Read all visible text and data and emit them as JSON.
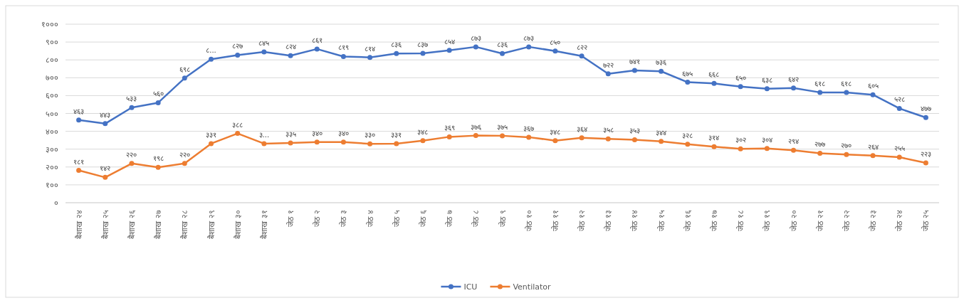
{
  "chart_data": {
    "type": "line",
    "categories": [
      "बैशाख २४",
      "बैशाख २५",
      "बैशाख २६",
      "बैशाख २७",
      "बैशाख २८",
      "बैशाख २९",
      "बैशाख ३०",
      "बैशाख ३१",
      "जेठ १",
      "जेठ २",
      "जेठ ३",
      "जेठ ४",
      "जेठ ५",
      "जेठ ६",
      "जेठ ७",
      "जेठ ८",
      "जेठ ९",
      "जेठ १०",
      "जेठ ११",
      "जेठ १२",
      "जेठ १३",
      "जेठ १४",
      "जेठ १५",
      "जेठ १६",
      "जेठ १७",
      "जेठ १८",
      "जेठ १९",
      "जेठ २०",
      "जेठ २१",
      "जेठ २२",
      "जेठ २३",
      "जेठ २४",
      "जेठ २५"
    ],
    "series": [
      {
        "name": "ICU",
        "color": "#4472c4",
        "values": [
          463,
          443,
          533,
          560,
          698,
          804,
          827,
          845,
          824,
          861,
          819,
          814,
          836,
          837,
          854,
          873,
          836,
          873,
          850,
          822,
          722,
          741,
          736,
          675,
          668,
          650,
          638,
          642,
          618,
          618,
          605,
          528,
          477
        ],
        "value_labels": [
          "४६३",
          "४४३",
          "५३३",
          "५६०",
          "६९८",
          "८...",
          "८२७",
          "८४५",
          "८२४",
          "८६१",
          "८१९",
          "८१४",
          "८३६",
          "८३७",
          "८५४",
          "८७३",
          "८३६",
          "८७३",
          "८५०",
          "८२२",
          "७२२",
          "७४१",
          "७३६",
          "६७५",
          "६६८",
          "६५०",
          "६३८",
          "६४२",
          "६१८",
          "६१८",
          "६०५",
          "५२८",
          "४७७"
        ]
      },
      {
        "name": "Ventilator",
        "color": "#ed7d31",
        "values": [
          181,
          142,
          220,
          198,
          220,
          331,
          388,
          331,
          335,
          340,
          340,
          330,
          331,
          348,
          369,
          376,
          375,
          367,
          348,
          364,
          358,
          353,
          344,
          328,
          314,
          302,
          304,
          294,
          277,
          270,
          264,
          255,
          223
        ],
        "value_labels": [
          "१८१",
          "१४२",
          "२२०",
          "१९८",
          "२२०",
          "३३१",
          "३८८",
          "३...",
          "३३५",
          "३४०",
          "३४०",
          "३३०",
          "३३१",
          "३४८",
          "३६९",
          "३७६",
          "३७५",
          "३६७",
          "३४८",
          "३६४",
          "३५८",
          "३५३",
          "३४४",
          "३२८",
          "३१४",
          "३०२",
          "३०४",
          "२९४",
          "२७७",
          "२७०",
          "२६४",
          "२५५",
          "२२३"
        ]
      }
    ],
    "ylim": [
      0,
      1000
    ],
    "yticks": [
      {
        "value": 0,
        "label": "०"
      },
      {
        "value": 100,
        "label": "१००"
      },
      {
        "value": 200,
        "label": "२००"
      },
      {
        "value": 300,
        "label": "३००"
      },
      {
        "value": 400,
        "label": "४००"
      },
      {
        "value": 500,
        "label": "५००"
      },
      {
        "value": 600,
        "label": "६००"
      },
      {
        "value": 700,
        "label": "७००"
      },
      {
        "value": 800,
        "label": "८००"
      },
      {
        "value": 900,
        "label": "९००"
      },
      {
        "value": 1000,
        "label": "१०००"
      }
    ],
    "grid": "y",
    "legend": "bottom",
    "marker": "circle"
  }
}
